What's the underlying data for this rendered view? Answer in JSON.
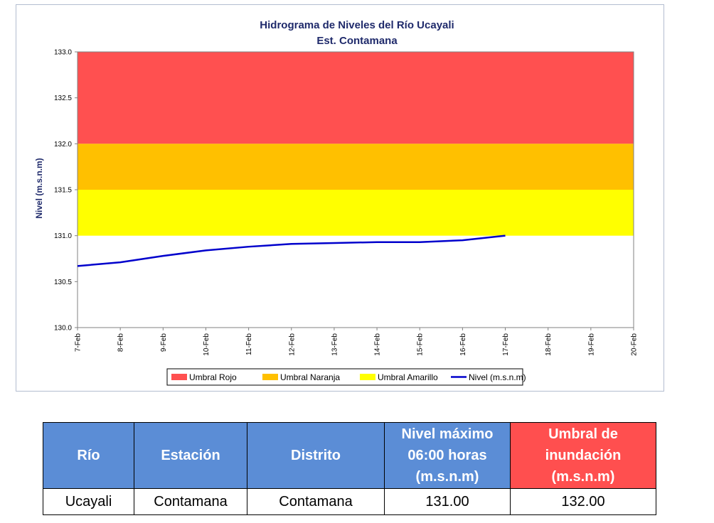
{
  "chart_data": {
    "type": "line",
    "title": "Hidrograma de Niveles del Río Ucayali",
    "subtitle": "Est. Contamana",
    "xlabel": "",
    "ylabel": "Nivel (m.s.n.m)",
    "ylim": [
      130.0,
      133.0
    ],
    "y_ticks": [
      "130.0",
      "130.5",
      "131.0",
      "131.5",
      "132.0",
      "132.5",
      "133.0"
    ],
    "x_categories": [
      "7-Feb",
      "8-Feb",
      "9-Feb",
      "10-Feb",
      "11-Feb",
      "12-Feb",
      "13-Feb",
      "14-Feb",
      "15-Feb",
      "16-Feb",
      "17-Feb",
      "18-Feb",
      "19-Feb",
      "20-Feb"
    ],
    "bands": [
      {
        "name": "Umbral Rojo",
        "from": 132.0,
        "to": 133.0,
        "color": "#ff5050"
      },
      {
        "name": "Umbral Naranja",
        "from": 131.5,
        "to": 132.0,
        "color": "#ffc000"
      },
      {
        "name": "Umbral Amarillo",
        "from": 131.0,
        "to": 131.5,
        "color": "#ffff00"
      }
    ],
    "series": [
      {
        "name": "Nivel (m.s.n.m)",
        "color": "#0000cc",
        "x": [
          "7-Feb",
          "8-Feb",
          "9-Feb",
          "10-Feb",
          "11-Feb",
          "12-Feb",
          "13-Feb",
          "14-Feb",
          "15-Feb",
          "16-Feb",
          "17-Feb"
        ],
        "values": [
          130.67,
          130.71,
          130.78,
          130.84,
          130.88,
          130.91,
          130.92,
          130.93,
          130.93,
          130.95,
          131.0
        ]
      }
    ],
    "grid": false,
    "legend_position": "bottom"
  },
  "table": {
    "headers": [
      {
        "lines": [
          "Río"
        ],
        "color": "#5b8dd6"
      },
      {
        "lines": [
          "Estación"
        ],
        "color": "#5b8dd6"
      },
      {
        "lines": [
          "Distrito"
        ],
        "color": "#5b8dd6"
      },
      {
        "lines": [
          "Nivel máximo",
          "06:00 horas",
          "(m.s.n.m)"
        ],
        "color": "#5b8dd6"
      },
      {
        "lines": [
          "Umbral de",
          "inundación",
          "(m.s.n.m)"
        ],
        "color": "#ff4f4f"
      }
    ],
    "row": {
      "rio": "Ucayali",
      "estacion": "Contamana",
      "distrito": "Contamana",
      "nivel_maximo": "131.00",
      "umbral": "132.00"
    }
  }
}
